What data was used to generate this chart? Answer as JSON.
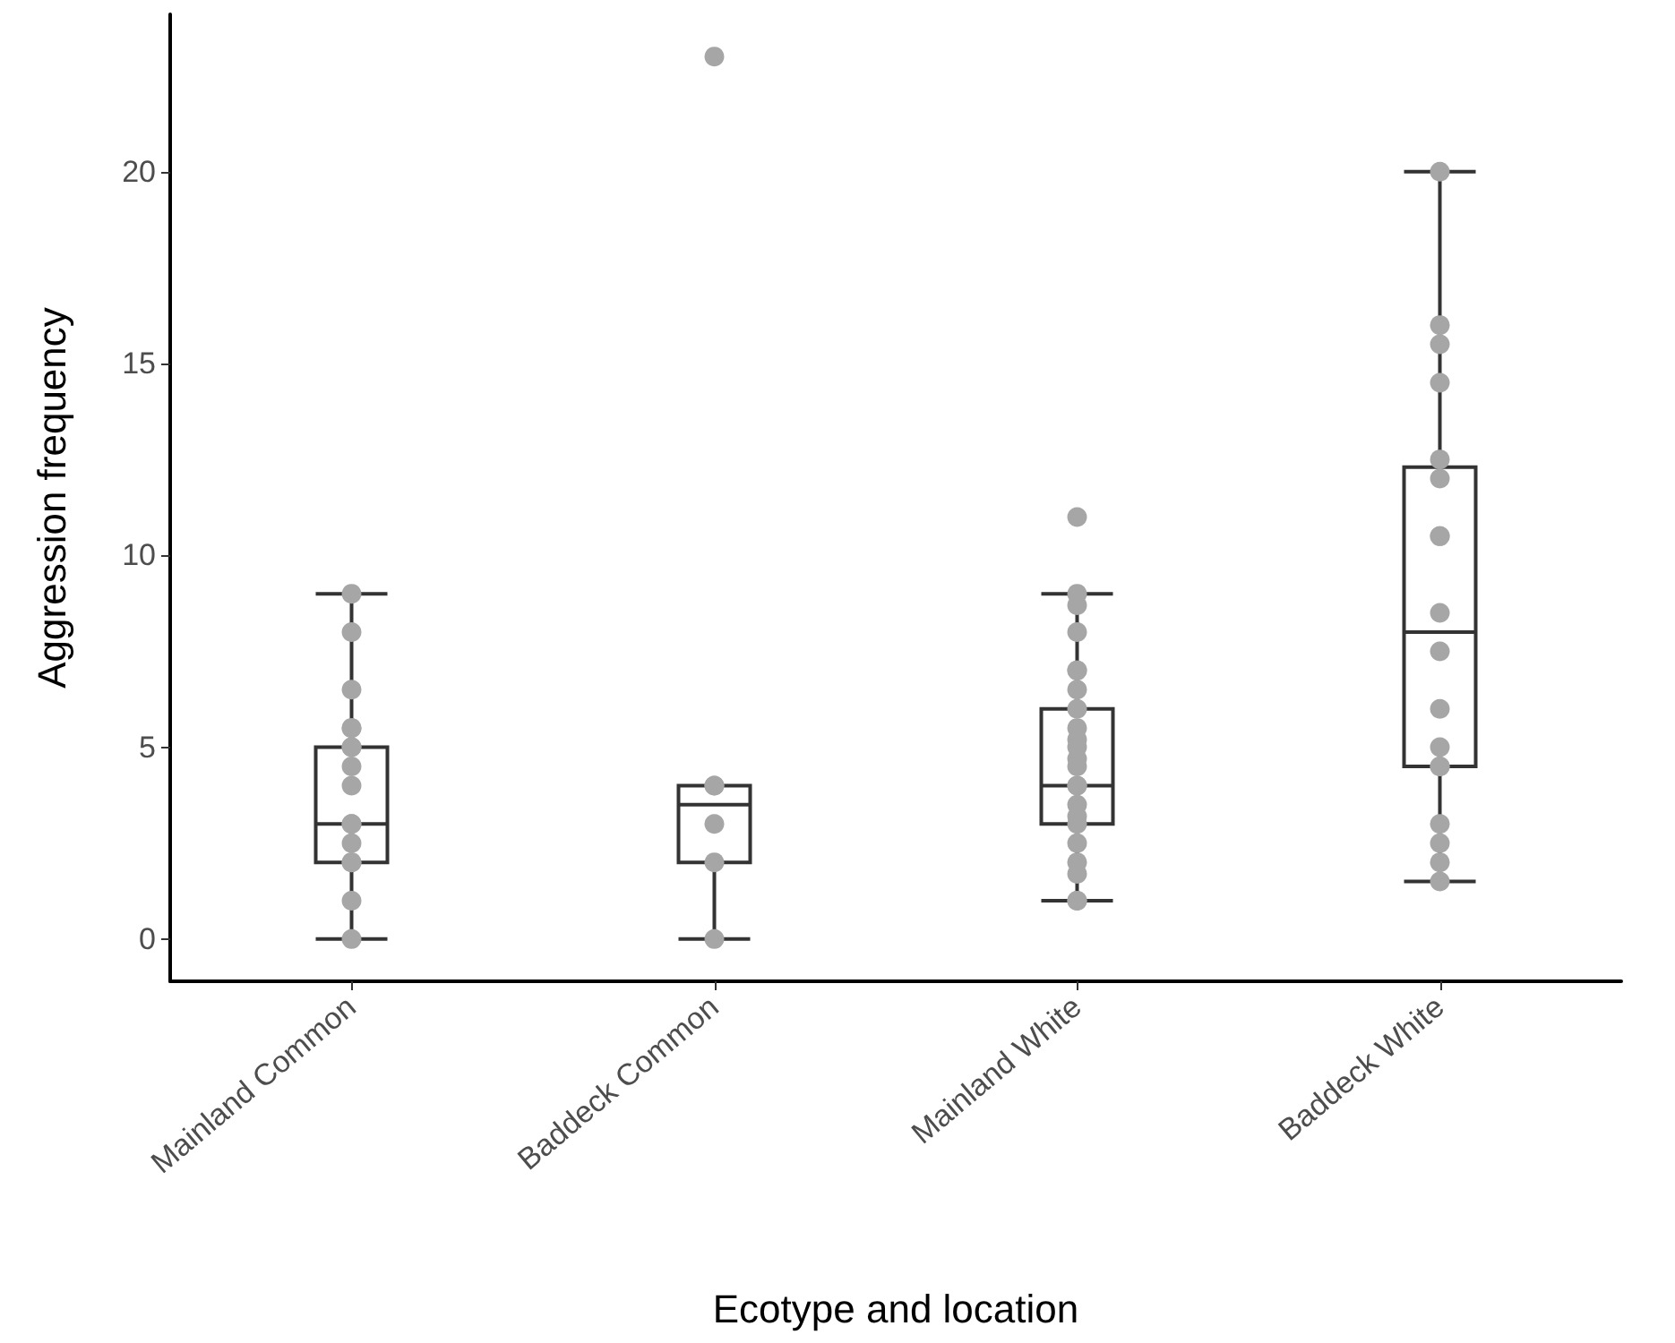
{
  "chart_data": {
    "type": "box",
    "xlabel": "Ecotype and location",
    "ylabel": "Aggression frequency",
    "categories": [
      "Mainland Common",
      "Baddeck Common",
      "Mainland White",
      "Baddeck White"
    ],
    "ylim": [
      -1.1,
      24.1
    ],
    "yticks": [
      0,
      5,
      10,
      15,
      20
    ],
    "grid": false,
    "boxes": [
      {
        "low": 0,
        "q1": 2,
        "median": 3,
        "q3": 5,
        "high": 9
      },
      {
        "low": 0,
        "q1": 2,
        "median": 3.5,
        "q3": 4,
        "high": 4
      },
      {
        "low": 1,
        "q1": 3,
        "median": 4,
        "q3": 6,
        "high": 9
      },
      {
        "low": 1.5,
        "q1": 4.5,
        "median": 8,
        "q3": 12.3,
        "high": 20
      }
    ],
    "series": [
      {
        "type": "scatter",
        "color": "#a6a6a6",
        "marker": "circle",
        "x": [
          "Mainland Common",
          "Mainland Common",
          "Mainland Common",
          "Mainland Common",
          "Mainland Common",
          "Mainland Common",
          "Mainland Common",
          "Mainland Common",
          "Mainland Common",
          "Mainland Common",
          "Mainland Common",
          "Mainland Common",
          "Mainland Common",
          "Mainland Common",
          "Mainland Common",
          "Mainland Common",
          "Baddeck Common",
          "Baddeck Common",
          "Baddeck Common",
          "Baddeck Common",
          "Baddeck Common",
          "Baddeck Common",
          "Mainland White",
          "Mainland White",
          "Mainland White",
          "Mainland White",
          "Mainland White",
          "Mainland White",
          "Mainland White",
          "Mainland White",
          "Mainland White",
          "Mainland White",
          "Mainland White",
          "Mainland White",
          "Mainland White",
          "Mainland White",
          "Mainland White",
          "Mainland White",
          "Mainland White",
          "Mainland White",
          "Mainland White",
          "Mainland White",
          "Mainland White",
          "Mainland White",
          "Mainland White",
          "Baddeck White",
          "Baddeck White",
          "Baddeck White",
          "Baddeck White",
          "Baddeck White",
          "Baddeck White",
          "Baddeck White",
          "Baddeck White",
          "Baddeck White",
          "Baddeck White",
          "Baddeck White",
          "Baddeck White",
          "Baddeck White",
          "Baddeck White",
          "Baddeck White",
          "Baddeck White",
          "Baddeck White",
          "Baddeck White"
        ],
        "values": [
          9,
          8,
          6.5,
          5.5,
          5.5,
          5,
          5,
          4.5,
          4,
          3,
          3,
          2.5,
          2,
          2,
          1,
          0,
          23,
          4,
          4,
          3,
          2,
          0,
          11,
          9,
          8.7,
          8,
          7,
          7,
          6.5,
          6,
          5.5,
          5.2,
          5,
          4.7,
          4.5,
          4,
          4,
          3.5,
          3.2,
          3,
          2.5,
          2,
          1.7,
          1,
          1,
          20,
          16,
          15.5,
          14.5,
          12.5,
          12,
          10.5,
          10.5,
          8.5,
          7.5,
          6,
          5,
          4.5,
          4.5,
          3,
          2.5,
          2,
          1.5
        ]
      }
    ]
  }
}
